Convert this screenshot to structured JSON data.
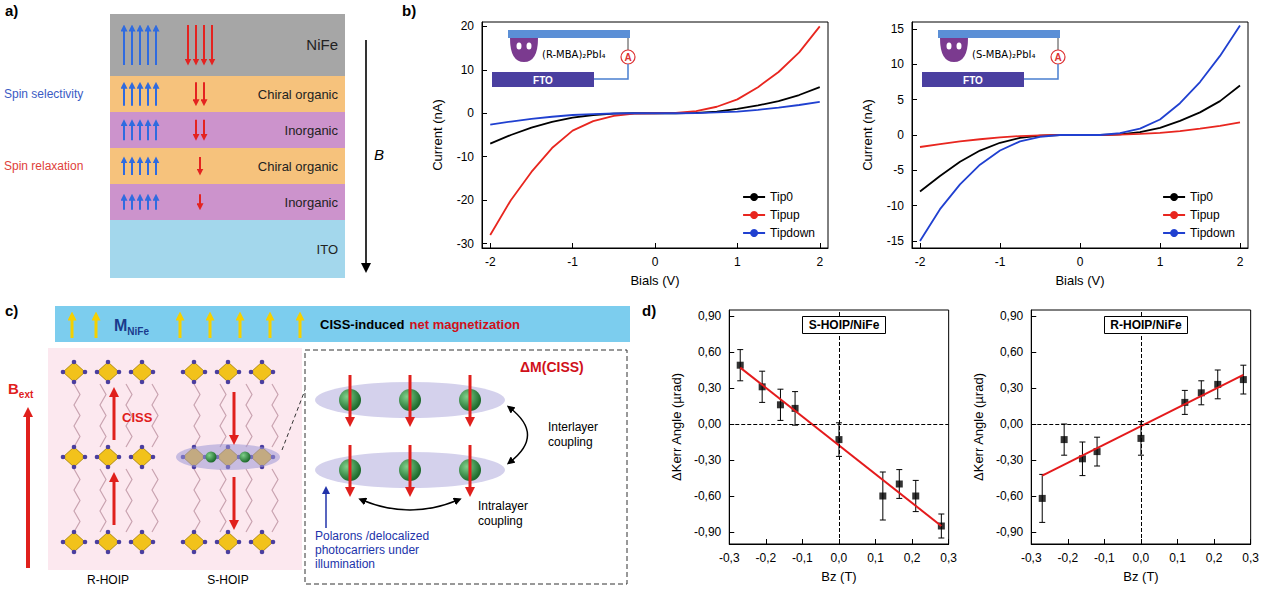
{
  "diagram_a": {
    "panel": "a)",
    "up_color": "#2f6be0",
    "down_color": "#e42320",
    "field": "B",
    "layers": [
      {
        "label": "NiFe",
        "color": "#a6a6a6",
        "spin_up": 5,
        "spin_down": 4
      },
      {
        "label": "Chiral organic",
        "color": "#f6c27c",
        "spin_up": 5,
        "spin_down": 2,
        "note": "Spin selectivity",
        "note_color": "#3b5bc4"
      },
      {
        "label": "Inorganic",
        "color": "#cc93cc",
        "spin_up": 5,
        "spin_down": 2
      },
      {
        "label": "Chiral organic",
        "color": "#f6c27c",
        "spin_up": 5,
        "spin_down": 1,
        "note": "Spin relaxation",
        "note_color": "#e0413a"
      },
      {
        "label": "Inorganic",
        "color": "#cc93cc",
        "spin_up": 5,
        "spin_down": 1
      },
      {
        "label": "ITO",
        "color": "#a3d7ec"
      }
    ]
  },
  "chart_data": [
    {
      "panel": "b)",
      "type": "line",
      "x_label": "Bials (V)",
      "y_label": "Current (nA)",
      "inset": {
        "sample": "(R-MBA)₂PbI₄",
        "substrate": "FTO",
        "meter": "A"
      },
      "x": [
        -2,
        -1.75,
        -1.5,
        -1.25,
        -1,
        -0.75,
        -0.5,
        -0.25,
        0,
        0.25,
        0.5,
        0.75,
        1,
        1.25,
        1.5,
        1.75,
        2
      ],
      "xlim": [
        -2.1,
        2.1
      ],
      "xticks": [
        -2,
        -1,
        0,
        1,
        2
      ],
      "ylim": [
        -31,
        21
      ],
      "yticks": [
        -30,
        -20,
        -10,
        0,
        10,
        20
      ],
      "grid": false,
      "legend": "lower right",
      "series": [
        {
          "name": "Tip0",
          "color": "#000000",
          "values": [
            -7,
            -5,
            -3.3,
            -2,
            -1,
            -0.4,
            -0.1,
            0,
            0,
            0,
            0.1,
            0.4,
            1,
            1.8,
            2.8,
            4.2,
            6
          ]
        },
        {
          "name": "Tipup",
          "color": "#e8261f",
          "values": [
            -28,
            -20,
            -13.5,
            -8,
            -4,
            -1.8,
            -0.6,
            -0.1,
            0,
            0.1,
            0.5,
            1.5,
            3.2,
            6,
            9.5,
            14,
            20
          ]
        },
        {
          "name": "Tipdown",
          "color": "#2040d0",
          "values": [
            -2.6,
            -1.9,
            -1.3,
            -0.8,
            -0.4,
            -0.2,
            -0.05,
            0,
            0,
            0,
            0.05,
            0.2,
            0.4,
            0.8,
            1.3,
            1.9,
            2.6
          ]
        }
      ]
    },
    {
      "type": "line",
      "x_label": "Bials (V)",
      "y_label": "Current (nA)",
      "inset": {
        "sample": "(S-MBA)₂PbI₄",
        "substrate": "FTO",
        "meter": "A"
      },
      "x": [
        -2,
        -1.75,
        -1.5,
        -1.25,
        -1,
        -0.75,
        -0.5,
        -0.25,
        0,
        0.25,
        0.5,
        0.75,
        1,
        1.25,
        1.5,
        1.75,
        2
      ],
      "xlim": [
        -2.1,
        2.1
      ],
      "xticks": [
        -2,
        -1,
        0,
        1,
        2
      ],
      "ylim": [
        -16,
        16
      ],
      "yticks": [
        -15,
        -10,
        -5,
        0,
        5,
        10,
        15
      ],
      "grid": false,
      "legend": "lower right",
      "series": [
        {
          "name": "Tip0",
          "color": "#000000",
          "values": [
            -8,
            -5.8,
            -3.8,
            -2.2,
            -1.1,
            -0.4,
            -0.1,
            0,
            0,
            0,
            0.1,
            0.4,
            1,
            2,
            3.2,
            4.8,
            7
          ]
        },
        {
          "name": "Tipup",
          "color": "#e8261f",
          "values": [
            -1.7,
            -1.3,
            -0.9,
            -0.6,
            -0.35,
            -0.15,
            -0.05,
            0,
            0,
            0,
            0.05,
            0.15,
            0.3,
            0.55,
            0.9,
            1.3,
            1.8
          ]
        },
        {
          "name": "Tipdown",
          "color": "#2040d0",
          "values": [
            -15,
            -10.5,
            -7,
            -4.2,
            -2.2,
            -0.9,
            -0.25,
            0,
            0,
            0,
            0.25,
            0.9,
            2.2,
            4.5,
            7.5,
            11.2,
            15.5
          ]
        }
      ]
    },
    {
      "panel": "d)",
      "type": "scatter",
      "title": "S-HOIP/NiFe",
      "x_label": "Bz (T)",
      "y_label": "ΔKerr Angle (µrad)",
      "xlim": [
        -0.3,
        0.3
      ],
      "xticks": [
        {
          "value": -0.3,
          "label": "-0,3"
        },
        {
          "value": -0.2,
          "label": "-0,2"
        },
        {
          "value": -0.1,
          "label": "-0,1"
        },
        {
          "value": 0,
          "label": "0,0"
        },
        {
          "value": 0.1,
          "label": "0,1"
        },
        {
          "value": 0.2,
          "label": "0,2"
        },
        {
          "value": 0.3,
          "label": "0,3"
        }
      ],
      "ylim": [
        -1.0,
        0.95
      ],
      "yticks": [
        {
          "value": -0.9,
          "label": "-0,90"
        },
        {
          "value": -0.6,
          "label": "-0,60"
        },
        {
          "value": -0.3,
          "label": "-0,30"
        },
        {
          "value": 0,
          "label": "0,00"
        },
        {
          "value": 0.3,
          "label": "0,30"
        },
        {
          "value": 0.6,
          "label": "0,60"
        },
        {
          "value": 0.9,
          "label": "0,90"
        }
      ],
      "reference_lines": {
        "x": 0,
        "y": 0
      },
      "grid": false,
      "series": [
        {
          "type": "scatter",
          "marker": "square",
          "color": "#000000",
          "x": [
            -0.27,
            -0.21,
            -0.16,
            -0.12,
            0.0,
            0.12,
            0.165,
            0.21,
            0.28
          ],
          "values": [
            0.49,
            0.31,
            0.16,
            0.13,
            -0.13,
            -0.6,
            -0.5,
            -0.6,
            -0.85
          ],
          "errors": [
            0.13,
            0.13,
            0.13,
            0.14,
            0.14,
            0.2,
            0.12,
            0.13,
            0.1
          ]
        },
        {
          "type": "line",
          "line_style": "solid",
          "color": "#e41a1c",
          "x": [
            -0.27,
            0.28
          ],
          "values": [
            0.47,
            -0.85
          ]
        }
      ]
    },
    {
      "type": "scatter",
      "title": "R-HOIP/NiFe",
      "x_label": "Bz (T)",
      "y_label": "ΔKerr Angle (µrad)",
      "xlim": [
        -0.3,
        0.3
      ],
      "xticks": [
        {
          "value": -0.3,
          "label": "-0,3"
        },
        {
          "value": -0.2,
          "label": "-0,2"
        },
        {
          "value": -0.1,
          "label": "-0,1"
        },
        {
          "value": 0,
          "label": "0,0"
        },
        {
          "value": 0.1,
          "label": "0,1"
        },
        {
          "value": 0.2,
          "label": "0,2"
        },
        {
          "value": 0.3,
          "label": "0,3"
        }
      ],
      "ylim": [
        -1.0,
        0.95
      ],
      "yticks": [
        {
          "value": -0.9,
          "label": "-0,90"
        },
        {
          "value": -0.6,
          "label": "-0,60"
        },
        {
          "value": -0.3,
          "label": "-0,30"
        },
        {
          "value": 0,
          "label": "0,00"
        },
        {
          "value": 0.3,
          "label": "0,30"
        },
        {
          "value": 0.6,
          "label": "0,60"
        },
        {
          "value": 0.9,
          "label": "0,90"
        }
      ],
      "reference_lines": {
        "x": 0,
        "y": 0
      },
      "grid": false,
      "series": [
        {
          "type": "scatter",
          "marker": "square",
          "color": "#000000",
          "x": [
            -0.27,
            -0.21,
            -0.16,
            -0.12,
            0.0,
            0.12,
            0.165,
            0.21,
            0.28
          ],
          "values": [
            -0.62,
            -0.13,
            -0.29,
            -0.23,
            -0.12,
            0.18,
            0.26,
            0.33,
            0.37
          ],
          "errors": [
            0.2,
            0.13,
            0.14,
            0.12,
            0.14,
            0.1,
            0.1,
            0.12,
            0.12
          ]
        },
        {
          "type": "line",
          "line_style": "solid",
          "color": "#e41a1c",
          "x": [
            -0.27,
            0.28
          ],
          "values": [
            -0.43,
            0.41
          ]
        }
      ]
    }
  ],
  "diagram_c": {
    "panel": "c)",
    "magnet": {
      "symbol": "M",
      "subscript": "NiFe",
      "color": "#7ccdee"
    },
    "field": {
      "symbol": "B",
      "subscript": "ext"
    },
    "header": [
      "CISS-induced",
      "net magnetization"
    ],
    "ciss_label": "CISS",
    "structures": [
      "R-HOIP",
      "S-HOIP"
    ],
    "inset": {
      "title": "ΔM(CISS)",
      "interlayer": "Interlayer coupling",
      "intralayer": "Intralayer coupling",
      "carriers": "Polarons /delocalized photocarriers under illumination"
    }
  }
}
